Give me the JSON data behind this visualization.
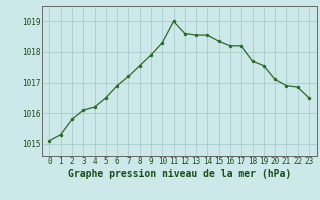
{
  "hours": [
    0,
    1,
    2,
    3,
    4,
    5,
    6,
    7,
    8,
    9,
    10,
    11,
    12,
    13,
    14,
    15,
    16,
    17,
    18,
    19,
    20,
    21,
    22,
    23
  ],
  "pressure": [
    1015.1,
    1015.3,
    1015.8,
    1016.1,
    1016.2,
    1016.5,
    1016.9,
    1017.2,
    1017.55,
    1017.9,
    1018.3,
    1019.0,
    1018.6,
    1018.55,
    1018.55,
    1018.35,
    1018.2,
    1018.2,
    1017.7,
    1017.55,
    1017.1,
    1016.9,
    1016.85,
    1016.5
  ],
  "line_color": "#2d6a2d",
  "marker_color": "#2d6a2d",
  "bg_color": "#cce8e8",
  "grid_color": "#aacccc",
  "xlabel": "Graphe pression niveau de la mer (hPa)",
  "ylim_min": 1014.6,
  "ylim_max": 1019.5,
  "yticks": [
    1015,
    1016,
    1017,
    1018,
    1019
  ],
  "xticks": [
    0,
    1,
    2,
    3,
    4,
    5,
    6,
    7,
    8,
    9,
    10,
    11,
    12,
    13,
    14,
    15,
    16,
    17,
    18,
    19,
    20,
    21,
    22,
    23
  ],
  "tick_fontsize": 5.5,
  "label_fontsize": 7.0,
  "line_width": 0.9,
  "marker_size": 2.2,
  "spine_color": "#666666",
  "xlabel_color": "#1a4d1a",
  "tick_color": "#1a4d1a"
}
